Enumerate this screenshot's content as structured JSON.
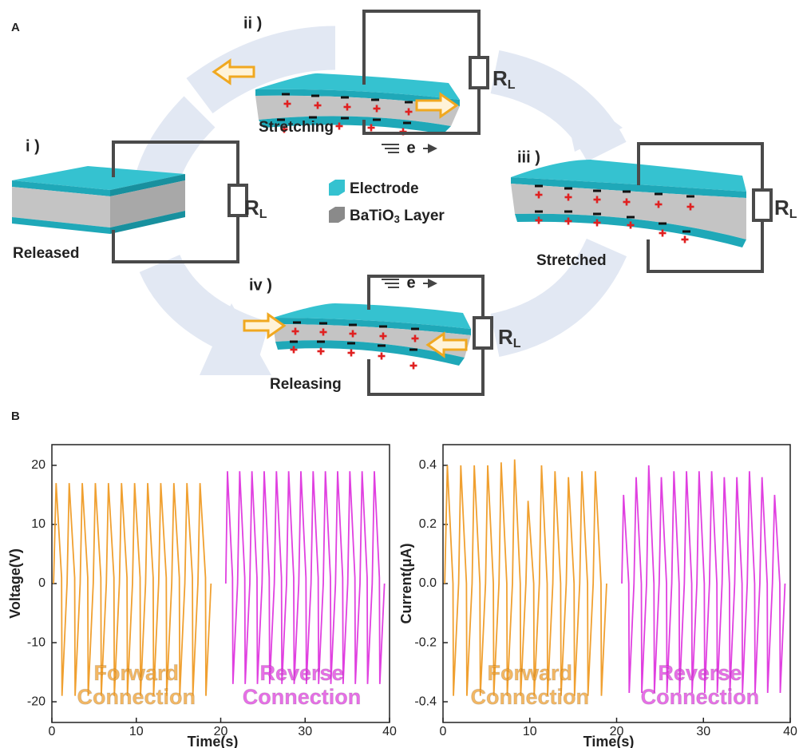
{
  "panel_a": {
    "label": "A",
    "states": [
      {
        "number": "i )",
        "caption": "Released"
      },
      {
        "number": "ii )",
        "caption": "Stretching"
      },
      {
        "number": "iii )",
        "caption": "Stretched"
      },
      {
        "number": "iv )",
        "caption": "Releasing"
      }
    ],
    "load_resistor": {
      "symbol": "R",
      "subscript": "L"
    },
    "electron": "e",
    "legend": [
      {
        "label": "Electrode"
      },
      {
        "label_parts": [
          "BaTiO",
          "3",
          " Layer"
        ]
      }
    ]
  },
  "panel_b": {
    "label": "B"
  },
  "chart_data": [
    {
      "type": "line",
      "xlabel": "Time(s)",
      "ylabel": "Voltage(V)",
      "xlim": [
        0,
        40
      ],
      "xticks": [
        0,
        10,
        20,
        30,
        40
      ],
      "ylim": [
        -23.5,
        23.5
      ],
      "yticks": [
        -20,
        -10,
        0,
        10,
        20
      ],
      "series": [
        {
          "name": "Forward Connection",
          "color": "#f0a030",
          "x": [
            0.2,
            0.5,
            1.15,
            1.2,
            1.8,
            2.05,
            2.7,
            2.75,
            3.35,
            3.6,
            4.25,
            4.3,
            4.9,
            5.15,
            5.8,
            5.85,
            6.45,
            6.7,
            7.35,
            7.4,
            8.0,
            8.25,
            8.9,
            8.95,
            9.55,
            9.8,
            10.45,
            10.5,
            11.1,
            11.35,
            12.0,
            12.05,
            12.65,
            12.9,
            13.55,
            13.6,
            14.2,
            14.45,
            15.1,
            15.15,
            15.75,
            16.0,
            16.65,
            16.7,
            17.3,
            17.55,
            18.2,
            18.25,
            18.85
          ],
          "values": [
            0,
            17,
            1,
            -19,
            0,
            17,
            1,
            -19,
            0,
            17,
            1,
            -19,
            0,
            17,
            1,
            -19,
            0,
            17,
            1,
            -19,
            0,
            17,
            1,
            -19,
            0,
            17,
            1,
            -19,
            0,
            17,
            1,
            -19,
            0,
            17,
            1,
            -19,
            0,
            17,
            1,
            -19,
            0,
            17,
            1,
            -19,
            0,
            17,
            1,
            -19,
            0
          ]
        },
        {
          "name": "Reverse Connection",
          "color": "#e040e0",
          "x": [
            20.6,
            20.8,
            21.4,
            21.45,
            22.0,
            22.25,
            22.85,
            22.9,
            23.45,
            23.7,
            24.3,
            24.35,
            24.9,
            25.15,
            25.75,
            25.8,
            26.35,
            26.6,
            27.2,
            27.25,
            27.8,
            28.05,
            28.65,
            28.7,
            29.25,
            29.5,
            30.1,
            30.15,
            30.7,
            30.95,
            31.55,
            31.6,
            32.15,
            32.4,
            33.0,
            33.05,
            33.6,
            33.85,
            34.45,
            34.5,
            35.05,
            35.3,
            35.9,
            35.95,
            36.5,
            36.75,
            37.35,
            37.4,
            37.95,
            38.2,
            38.8,
            38.85,
            39.4
          ],
          "values": [
            0,
            19,
            1,
            -17,
            0,
            19,
            1,
            -17,
            0,
            19,
            1,
            -17,
            0,
            19,
            1,
            -17,
            0,
            19,
            1,
            -17,
            0,
            19,
            1,
            -17,
            0,
            19,
            1,
            -17,
            0,
            19,
            1,
            -17,
            0,
            19,
            1,
            -17,
            0,
            19,
            1,
            -17,
            0,
            19,
            1,
            -17,
            0,
            19,
            1,
            -17,
            0,
            19,
            1,
            -17,
            0
          ]
        }
      ]
    },
    {
      "type": "line",
      "xlabel": "Time(s)",
      "ylabel": "Current(μA)",
      "xlim": [
        0,
        40
      ],
      "xticks": [
        0,
        10,
        20,
        30,
        40
      ],
      "ylim": [
        -0.47,
        0.47
      ],
      "yticks": [
        -0.4,
        -0.2,
        {
          "value": 0,
          "label": "0.0"
        },
        0.2,
        0.4
      ],
      "series": [
        {
          "name": "Forward Connection",
          "color": "#f0a030",
          "x": [
            0.2,
            0.5,
            1.15,
            1.2,
            1.8,
            2.05,
            2.7,
            2.75,
            3.35,
            3.6,
            4.25,
            4.3,
            4.9,
            5.15,
            5.8,
            5.85,
            6.45,
            6.7,
            7.35,
            7.4,
            8.0,
            8.25,
            8.9,
            8.95,
            9.55,
            9.8,
            10.45,
            10.5,
            11.1,
            11.35,
            12.0,
            12.05,
            12.65,
            12.9,
            13.55,
            13.6,
            14.2,
            14.45,
            15.1,
            15.15,
            15.75,
            16.0,
            16.65,
            16.7,
            17.3,
            17.55,
            18.2,
            18.25,
            18.85
          ],
          "values": [
            0,
            0.4,
            0,
            -0.38,
            0,
            0.4,
            0,
            -0.38,
            0,
            0.4,
            0,
            -0.38,
            0,
            0.4,
            0,
            -0.38,
            0,
            0.41,
            0,
            -0.38,
            0,
            0.42,
            0,
            -0.38,
            0,
            0.28,
            0,
            -0.38,
            0,
            0.4,
            0,
            -0.38,
            0,
            0.38,
            0,
            -0.38,
            0,
            0.36,
            0,
            -0.38,
            0,
            0.38,
            0,
            -0.38,
            0,
            0.38,
            0,
            -0.38,
            0
          ]
        },
        {
          "name": "Reverse Connection",
          "color": "#e040e0",
          "x": [
            20.6,
            20.8,
            21.4,
            21.45,
            22.0,
            22.25,
            22.85,
            22.9,
            23.45,
            23.7,
            24.3,
            24.35,
            24.9,
            25.15,
            25.75,
            25.8,
            26.35,
            26.6,
            27.2,
            27.25,
            27.8,
            28.05,
            28.65,
            28.7,
            29.25,
            29.5,
            30.1,
            30.15,
            30.7,
            30.95,
            31.55,
            31.6,
            32.15,
            32.4,
            33.0,
            33.05,
            33.6,
            33.85,
            34.45,
            34.5,
            35.05,
            35.3,
            35.9,
            35.95,
            36.5,
            36.75,
            37.35,
            37.4,
            37.95,
            38.2,
            38.8,
            38.85,
            39.4
          ],
          "values": [
            0,
            0.3,
            0,
            -0.37,
            0,
            0.36,
            0,
            -0.37,
            0,
            0.4,
            0,
            -0.37,
            0,
            0.36,
            0,
            -0.37,
            0,
            0.38,
            0,
            -0.37,
            0,
            0.38,
            0,
            -0.37,
            0,
            0.38,
            0,
            -0.37,
            0,
            0.38,
            0,
            -0.37,
            0,
            0.36,
            0,
            -0.37,
            0,
            0.36,
            0,
            -0.37,
            0,
            0.38,
            0,
            -0.37,
            0,
            0.36,
            0,
            -0.37,
            0,
            0.3,
            0,
            -0.37,
            0
          ]
        }
      ]
    }
  ]
}
